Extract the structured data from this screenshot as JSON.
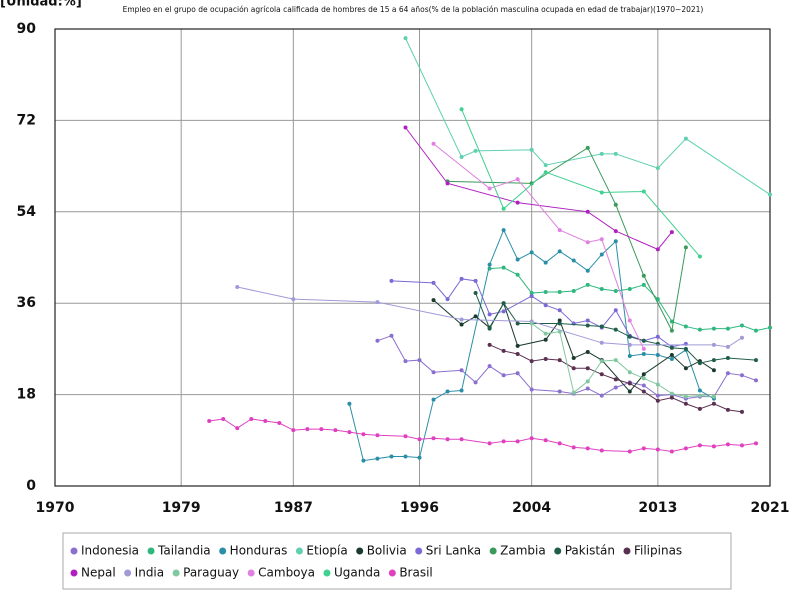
{
  "chart_data": {
    "type": "line",
    "title": "Empleo en el grupo de ocupación agrícola calificada de hombres de 15 a 64 años(% de la población masculina ocupada en edad de trabajar)(1970~2021)",
    "y_label": "[Unidad:%]",
    "xlim": [
      1970,
      2021
    ],
    "xticks": [
      1970,
      1979,
      1987,
      1996,
      2004,
      2013,
      2021
    ],
    "ylim": [
      0,
      90
    ],
    "yticks": [
      0,
      18,
      36,
      54,
      72,
      90
    ],
    "grid": true,
    "legend": "bottom",
    "series": [
      {
        "name": "Indonesia",
        "color": "#8a6fcf",
        "x": [
          1993,
          1994,
          1995,
          1996,
          1997,
          1999,
          2000,
          2001,
          2002,
          2003,
          2004,
          2006,
          2007,
          2008,
          2009,
          2010,
          2011,
          2012,
          2013,
          2014,
          2015,
          2016,
          2017,
          2018,
          2019,
          2020
        ],
        "values": [
          28.6,
          29.6,
          24.6,
          24.8,
          22.4,
          22.8,
          20.4,
          23.6,
          21.8,
          22.2,
          19.0,
          18.6,
          18.2,
          19.2,
          17.8,
          19.4,
          20.4,
          19.8,
          17.8,
          18.0,
          17.2,
          17.6,
          17.6,
          22.2,
          21.8,
          20.8
        ]
      },
      {
        "name": "Tailandia",
        "color": "#2eb87e",
        "x": [
          2001,
          2002,
          2003,
          2004,
          2005,
          2006,
          2007,
          2008,
          2009,
          2010,
          2011,
          2012,
          2013,
          2014,
          2015,
          2016,
          2017,
          2018,
          2019,
          2020,
          2021
        ],
        "values": [
          42.8,
          43.0,
          41.6,
          38.0,
          38.2,
          38.2,
          38.4,
          39.6,
          38.8,
          38.4,
          38.8,
          39.6,
          36.8,
          32.4,
          31.4,
          30.8,
          31.0,
          31.0,
          31.6,
          30.6,
          31.2
        ]
      },
      {
        "name": "Honduras",
        "color": "#2a8fa6",
        "x": [
          1991,
          1992,
          1993,
          1994,
          1995,
          1996,
          1997,
          1998,
          1999,
          2001,
          2002,
          2003,
          2004,
          2005,
          2006,
          2007,
          2008,
          2009,
          2010,
          2011,
          2012,
          2013,
          2014,
          2015,
          2016,
          2017
        ],
        "values": [
          16.2,
          5.0,
          5.4,
          5.8,
          5.8,
          5.6,
          17.0,
          18.6,
          18.8,
          43.6,
          50.4,
          44.6,
          46.0,
          44.0,
          46.2,
          44.4,
          42.4,
          45.6,
          48.2,
          25.6,
          26.0,
          25.8,
          25.0,
          26.8,
          18.8,
          17.2
        ]
      },
      {
        "name": "Etiopía",
        "color": "#5fd0b0",
        "x": [
          1995,
          1999,
          2000,
          2004,
          2005,
          2009,
          2010,
          2013,
          2015,
          2021
        ],
        "values": [
          88.2,
          64.8,
          66.0,
          66.2,
          63.2,
          65.4,
          65.4,
          62.6,
          68.4,
          57.4
        ]
      },
      {
        "name": "Bolivia",
        "color": "#1a3a2e",
        "x": [
          1997,
          1999,
          2000,
          2001,
          2002,
          2003,
          2005,
          2006,
          2007,
          2008,
          2009,
          2011,
          2012,
          2014,
          2015,
          2016,
          2017
        ],
        "values": [
          36.6,
          31.8,
          33.4,
          31.2,
          36.0,
          27.6,
          28.8,
          32.6,
          25.2,
          26.4,
          24.8,
          18.6,
          22.0,
          25.8,
          23.2,
          24.6,
          22.8
        ]
      },
      {
        "name": "Sri Lanka",
        "color": "#7a6ad6",
        "x": [
          1994,
          1997,
          1998,
          1999,
          2000,
          2001,
          2002,
          2004,
          2005,
          2006,
          2007,
          2008,
          2009,
          2010,
          2011,
          2012,
          2013,
          2014,
          2015
        ],
        "values": [
          40.4,
          40.0,
          36.8,
          40.8,
          40.4,
          33.8,
          34.4,
          37.4,
          35.6,
          34.6,
          32.0,
          32.6,
          31.2,
          34.6,
          29.6,
          28.6,
          29.4,
          27.4,
          28.0
        ]
      },
      {
        "name": "Zambia",
        "color": "#3a9a5a",
        "x": [
          1998,
          2004,
          2008,
          2010,
          2012,
          2014,
          2015
        ],
        "values": [
          60.0,
          59.6,
          66.6,
          55.4,
          41.4,
          30.6,
          47.0
        ]
      },
      {
        "name": "Pakistán",
        "color": "#1f5e4a",
        "x": [
          2000,
          2001,
          2002,
          2003,
          2006,
          2008,
          2009,
          2010,
          2011,
          2012,
          2013,
          2014,
          2015,
          2016,
          2017,
          2018,
          2020
        ],
        "values": [
          38.0,
          31.0,
          36.0,
          32.0,
          32.0,
          31.6,
          31.4,
          30.8,
          29.4,
          28.6,
          28.0,
          27.2,
          27.0,
          24.2,
          24.8,
          25.2,
          24.8
        ]
      },
      {
        "name": "Filipinas",
        "color": "#5a3050",
        "x": [
          2001,
          2002,
          2003,
          2004,
          2005,
          2006,
          2007,
          2008,
          2009,
          2010,
          2011,
          2012,
          2013,
          2014,
          2015,
          2016,
          2017,
          2018,
          2019
        ],
        "values": [
          27.8,
          26.6,
          26.0,
          24.6,
          25.0,
          24.8,
          23.2,
          23.2,
          22.0,
          21.0,
          20.2,
          18.6,
          16.8,
          17.4,
          16.2,
          15.2,
          16.2,
          15.0,
          14.6
        ]
      },
      {
        "name": "Nepal",
        "color": "#b020c0",
        "x": [
          1995,
          1998,
          2003,
          2008,
          2010,
          2013,
          2014
        ],
        "values": [
          70.6,
          59.6,
          55.8,
          54.0,
          50.2,
          46.6,
          50.0
        ]
      },
      {
        "name": "India",
        "color": "#a09ad8",
        "x": [
          1983,
          1987,
          1993,
          1999,
          2004,
          2009,
          2011,
          2017,
          2018,
          2019
        ],
        "values": [
          39.2,
          36.8,
          36.2,
          32.8,
          32.4,
          28.2,
          27.8,
          27.8,
          27.4,
          29.2
        ]
      },
      {
        "name": "Paraguay",
        "color": "#80c8a0",
        "x": [
          2004,
          2005,
          2006,
          2007,
          2008,
          2009,
          2010,
          2011,
          2012,
          2013,
          2014,
          2015,
          2016,
          2017
        ],
        "values": [
          32.0,
          30.0,
          30.4,
          18.4,
          20.6,
          24.6,
          24.8,
          22.4,
          21.2,
          20.0,
          18.2,
          17.6,
          17.8,
          17.6
        ]
      },
      {
        "name": "Camboya",
        "color": "#e080e0",
        "x": [
          1997,
          2001,
          2003,
          2006,
          2008,
          2009,
          2011,
          2012
        ],
        "values": [
          67.4,
          58.6,
          60.4,
          50.4,
          48.0,
          48.6,
          32.6,
          27.0
        ]
      },
      {
        "name": "Uganda",
        "color": "#40d090",
        "x": [
          1999,
          2002,
          2005,
          2009,
          2012,
          2016
        ],
        "values": [
          74.2,
          54.6,
          61.8,
          57.8,
          58.0,
          45.2
        ]
      },
      {
        "name": "Brasil",
        "color": "#e040c0",
        "x": [
          1981,
          1982,
          1983,
          1984,
          1985,
          1986,
          1987,
          1988,
          1989,
          1990,
          1991,
          1992,
          1993,
          1995,
          1996,
          1997,
          1998,
          1999,
          2001,
          2002,
          2003,
          2004,
          2005,
          2006,
          2007,
          2008,
          2009,
          2011,
          2012,
          2013,
          2014,
          2015,
          2016,
          2017,
          2018,
          2019,
          2020
        ],
        "values": [
          12.8,
          13.2,
          11.4,
          13.2,
          12.8,
          12.4,
          11.0,
          11.2,
          11.2,
          11.0,
          10.6,
          10.2,
          10.0,
          9.8,
          9.2,
          9.4,
          9.2,
          9.2,
          8.4,
          8.8,
          8.8,
          9.4,
          9.0,
          8.4,
          7.6,
          7.4,
          7.0,
          6.8,
          7.4,
          7.2,
          6.8,
          7.4,
          8.0,
          7.8,
          8.2,
          8.0,
          8.4
        ]
      }
    ]
  }
}
